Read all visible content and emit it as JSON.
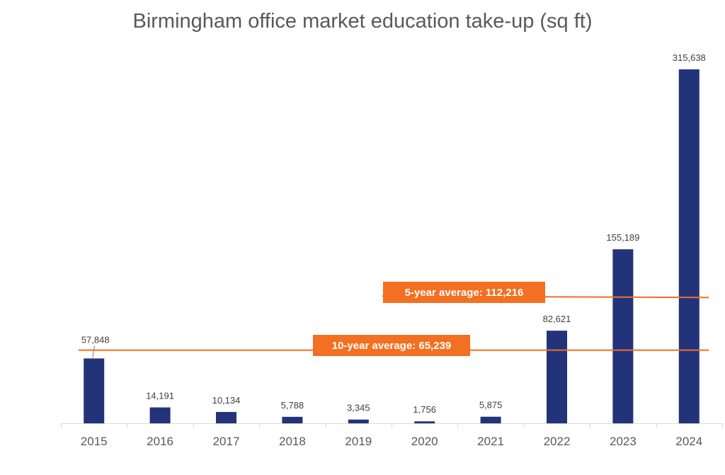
{
  "chart_data": {
    "type": "bar",
    "title": "Birmingham office market education take-up (sq ft)",
    "xlabel": "",
    "ylabel": "",
    "categories": [
      "2015",
      "2016",
      "2017",
      "2018",
      "2019",
      "2020",
      "2021",
      "2022",
      "2023",
      "2024"
    ],
    "values": [
      57848,
      14191,
      10134,
      5788,
      3345,
      1756,
      5875,
      82621,
      155189,
      315638
    ],
    "value_labels": [
      "57,848",
      "14,191",
      "10,134",
      "5,788",
      "3,345",
      "1,756",
      "5,875",
      "82,621",
      "155,189",
      "315,638"
    ],
    "ylim": [
      0,
      320000
    ],
    "grid": false,
    "legend": "none",
    "reference_lines": [
      {
        "label": "5-year average: 112,216",
        "value": 112216,
        "from_category": "2022",
        "to_category": "2024"
      },
      {
        "label": "10-year average: 65,239",
        "value": 65239,
        "from_category": "2015",
        "to_category": "2024"
      }
    ],
    "colors": {
      "bar": "#22337a",
      "average_line": "#f36f21",
      "axis": "#d9d9d9"
    }
  }
}
